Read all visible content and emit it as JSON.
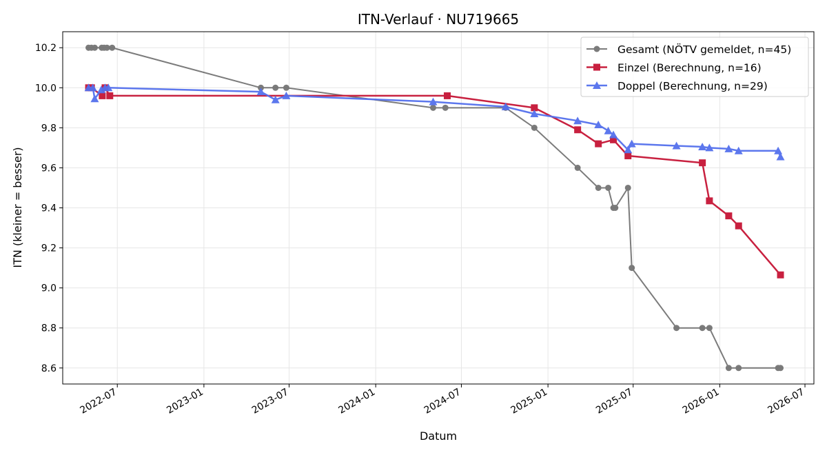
{
  "chart_data": {
    "type": "line",
    "title": "ITN-Verlauf · NU719665",
    "xlabel": "Datum",
    "ylabel": "ITN  (kleiner = besser)",
    "xlim": [
      "2022-03-07",
      "2026-07-20"
    ],
    "ylim": [
      8.52,
      10.28
    ],
    "x_ticks": [
      "2022-07",
      "2023-01",
      "2023-07",
      "2024-01",
      "2024-07",
      "2025-01",
      "2025-07",
      "2026-01",
      "2026-07"
    ],
    "y_ticks": [
      "8.6",
      "8.8",
      "9.0",
      "9.2",
      "9.4",
      "9.6",
      "9.8",
      "10.0",
      "10.2"
    ],
    "grid": true,
    "legend_position": "top-right",
    "series": [
      {
        "name": "Gesamt (NÖTV gemeldet, n=45)",
        "color": "#444444",
        "marker": "circle",
        "x": [
          "2022-05-01",
          "2022-05-07",
          "2022-05-14",
          "2022-05-29",
          "2022-06-03",
          "2022-06-09",
          "2022-06-20",
          "2023-05-02",
          "2023-06-02",
          "2023-06-25",
          "2024-05-02",
          "2024-05-28",
          "2024-10-03",
          "2024-12-03",
          "2025-03-05",
          "2025-04-18",
          "2025-05-09",
          "2025-05-20",
          "2025-05-24",
          "2025-06-20",
          "2025-06-28",
          "2025-10-01",
          "2025-11-25",
          "2025-12-10",
          "2026-01-20",
          "2026-02-10",
          "2026-05-05",
          "2026-05-10"
        ],
        "values": [
          10.2,
          10.2,
          10.2,
          10.2,
          10.2,
          10.2,
          10.2,
          10.0,
          10.0,
          10.0,
          9.9,
          9.9,
          9.9,
          9.8,
          9.6,
          9.5,
          9.5,
          9.4,
          9.4,
          9.5,
          9.1,
          8.8,
          8.8,
          8.8,
          8.6,
          8.6,
          8.6,
          8.6
        ]
      },
      {
        "name": "Einzel (Berechnung, n=16)",
        "color": "#c8203f",
        "marker": "square",
        "x": [
          "2022-05-01",
          "2022-05-07",
          "2022-05-30",
          "2022-06-05",
          "2022-06-15",
          "2024-06-01",
          "2024-12-03",
          "2025-03-05",
          "2025-04-18",
          "2025-05-20",
          "2025-06-20",
          "2025-11-25",
          "2025-12-10",
          "2026-01-20",
          "2026-02-10",
          "2026-05-10"
        ],
        "values": [
          10.0,
          10.0,
          9.96,
          10.0,
          9.96,
          9.96,
          9.9,
          9.79,
          9.72,
          9.74,
          9.66,
          9.625,
          9.435,
          9.36,
          9.31,
          9.065
        ]
      },
      {
        "name": "Doppel (Berechnung, n=29)",
        "color": "#5470ed",
        "marker": "triangle",
        "x": [
          "2022-05-01",
          "2022-05-10",
          "2022-05-14",
          "2022-05-28",
          "2022-06-05",
          "2022-06-12",
          "2023-05-02",
          "2023-06-02",
          "2023-06-25",
          "2024-05-02",
          "2024-10-03",
          "2024-12-03",
          "2025-03-05",
          "2025-04-18",
          "2025-05-09",
          "2025-05-20",
          "2025-06-20",
          "2025-06-28",
          "2025-10-01",
          "2025-11-25",
          "2025-12-10",
          "2026-01-20",
          "2026-02-10",
          "2026-05-05",
          "2026-05-10"
        ],
        "values": [
          10.0,
          10.0,
          9.945,
          9.99,
          10.0,
          10.0,
          9.98,
          9.94,
          9.96,
          9.93,
          9.905,
          9.87,
          9.835,
          9.815,
          9.785,
          9.765,
          9.69,
          9.72,
          9.71,
          9.705,
          9.7,
          9.695,
          9.685,
          9.685,
          9.655
        ]
      }
    ]
  }
}
